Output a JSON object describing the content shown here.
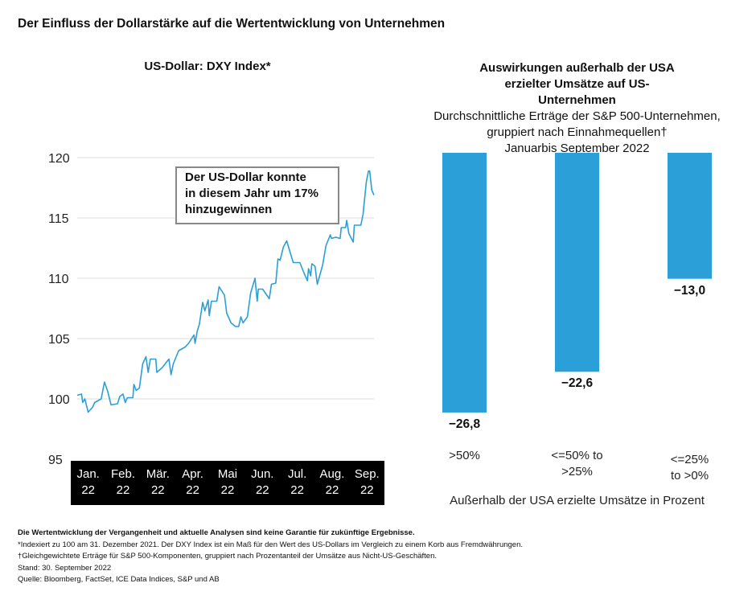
{
  "title": "Der Einfluss der Dollarstärke auf die Wertentwicklung von Unternehmen",
  "chart_data": [
    {
      "type": "line",
      "title": "US-Dollar: DXY Index*",
      "xlabel": "",
      "ylabel": "",
      "ylim": [
        95,
        120
      ],
      "yticks": [
        "120",
        "115",
        "110",
        "105",
        "100",
        "95"
      ],
      "xlim": [
        "2022-01-01",
        "2022-09-30"
      ],
      "xtick_labels": [
        [
          "Jan.",
          "22"
        ],
        [
          "Feb.",
          "22"
        ],
        [
          "Mär.",
          "22"
        ],
        [
          "Apr.",
          "22"
        ],
        [
          "Mai",
          "22"
        ],
        [
          "Jun.",
          "22"
        ],
        [
          "Jul.",
          "22"
        ],
        [
          "Aug.",
          "22"
        ],
        [
          "Sep.",
          "22"
        ]
      ],
      "grid": true,
      "color": "#2a9fd8",
      "annotation": [
        "Der US-Dollar konnte",
        "in diesem Jahr um 17%",
        "hinzugewinnen"
      ],
      "x": [
        "2022-01-01",
        "2022-01-05",
        "2022-01-06",
        "2022-01-08",
        "2022-01-11",
        "2022-01-13",
        "2022-01-15",
        "2022-01-17",
        "2022-01-23",
        "2022-01-26",
        "2022-01-29",
        "2022-02-01",
        "2022-02-07",
        "2022-02-09",
        "2022-02-12",
        "2022-02-14",
        "2022-02-16",
        "2022-02-21",
        "2022-02-22",
        "2022-02-24",
        "2022-02-27",
        "2022-03-02",
        "2022-03-05",
        "2022-03-07",
        "2022-03-09",
        "2022-03-14",
        "2022-03-15",
        "2022-03-20",
        "2022-03-26",
        "2022-03-28",
        "2022-03-30",
        "2022-04-04",
        "2022-04-10",
        "2022-04-13",
        "2022-04-18",
        "2022-04-19",
        "2022-04-21",
        "2022-04-23",
        "2022-04-26",
        "2022-04-28",
        "2022-05-01",
        "2022-05-02",
        "2022-05-04",
        "2022-05-09",
        "2022-05-11",
        "2022-05-16",
        "2022-05-18",
        "2022-05-22",
        "2022-05-26",
        "2022-05-29",
        "2022-05-31",
        "2022-06-02",
        "2022-06-06",
        "2022-06-09",
        "2022-06-13",
        "2022-06-15",
        "2022-06-16",
        "2022-06-20",
        "2022-06-26",
        "2022-06-28",
        "2022-07-02",
        "2022-07-04",
        "2022-07-06",
        "2022-07-09",
        "2022-07-12",
        "2022-07-15",
        "2022-07-18",
        "2022-07-24",
        "2022-07-28",
        "2022-07-31",
        "2022-08-01",
        "2022-08-03",
        "2022-08-04",
        "2022-08-07",
        "2022-08-09",
        "2022-08-14",
        "2022-08-17",
        "2022-08-21",
        "2022-08-22",
        "2022-08-26",
        "2022-08-30",
        "2022-08-31",
        "2022-09-04",
        "2022-09-05",
        "2022-09-07",
        "2022-09-11",
        "2022-09-12",
        "2022-09-18",
        "2022-09-20",
        "2022-09-23",
        "2022-09-25",
        "2022-09-26",
        "2022-09-28",
        "2022-09-30"
      ],
      "y": [
        100.3,
        100.4,
        99.7,
        100.0,
        98.9,
        99.1,
        99.3,
        99.7,
        100.0,
        101.4,
        100.6,
        99.5,
        99.6,
        100.2,
        100.4,
        99.7,
        100.1,
        100.1,
        101.2,
        100.7,
        100.9,
        102.9,
        103.5,
        102.2,
        103.3,
        103.3,
        102.2,
        102.6,
        103.3,
        102.0,
        102.9,
        104.0,
        104.3,
        104.6,
        105.3,
        104.6,
        105.6,
        106.2,
        108.0,
        107.3,
        108.2,
        106.9,
        108.1,
        108.1,
        109.3,
        108.6,
        107.1,
        106.3,
        106.0,
        106.0,
        106.8,
        106.3,
        106.8,
        108.8,
        110.0,
        108.1,
        109.1,
        109.1,
        108.3,
        109.5,
        109.6,
        111.6,
        111.5,
        112.6,
        113.1,
        112.2,
        111.3,
        111.3,
        110.4,
        109.8,
        110.8,
        110.2,
        111.2,
        111.0,
        109.5,
        111.1,
        112.7,
        113.6,
        113.3,
        113.4,
        113.3,
        114.2,
        114.2,
        114.8,
        113.7,
        113.0,
        114.4,
        114.4,
        115.3,
        118.0,
        118.9,
        118.9,
        117.3,
        116.9
      ]
    },
    {
      "type": "bar",
      "title": "Auswirkungen außerhalb der USA erzielter Umsätze auf US-Unternehmen",
      "subtitle": [
        "Durchschnittliche Erträge der S&P 500-Unternehmen,",
        "gruppiert nach Einnahmequellen†",
        "Januarbis September 2022"
      ],
      "categories": [
        [
          ">50%"
        ],
        [
          "<=50% to",
          ">25%"
        ],
        [
          "<=25%",
          "to >0%"
        ]
      ],
      "values": [
        -26.8,
        -22.6,
        -13.0
      ],
      "value_labels": [
        "−26,8",
        "−22,6",
        "−13,0"
      ],
      "xlabel": "Außerhalb der USA erzielte Umsätze in Prozent",
      "ylim": [
        -26.8,
        0
      ],
      "color": "#2a9fd8"
    }
  ],
  "footnotes": {
    "disclaimer": "Die Wertentwicklung der Vergangenheit und aktuelle Analysen sind keine Garantie für zukünftige Ergebnisse.",
    "lines": [
      "*Indexiert zu 100 am 31. Dezember 2021. Der DXY Index ist ein Maß für den Wert des US-Dollars im Vergleich zu einem Korb aus Fremdwährungen.",
      "†Gleichgewichtete Erträge für S&P 500-Komponenten, gruppiert nach Prozentanteil der Umsätze aus Nicht-US-Geschäften.",
      "Stand: 30. September 2022",
      "Quelle: Bloomberg, FactSet, ICE Data Indices, S&P und AB"
    ]
  }
}
